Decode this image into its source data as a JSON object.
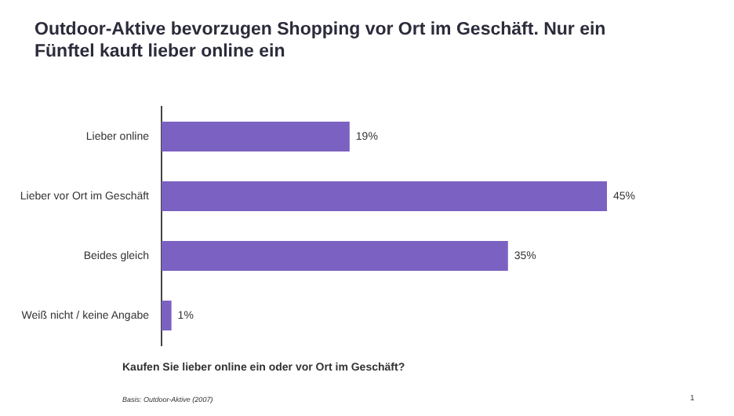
{
  "chart_data": {
    "type": "bar",
    "orientation": "horizontal",
    "title": "Outdoor-Aktive bevorzugen Shopping vor Ort im Geschäft. Nur ein Fünftel kauft lieber online ein",
    "categories": [
      "Lieber online",
      "Lieber vor Ort im Geschäft",
      "Beides gleich",
      "Weiß nicht / keine Angabe"
    ],
    "values": [
      19,
      45,
      35,
      1
    ],
    "value_labels": [
      "19%",
      "45%",
      "35%",
      "1%"
    ],
    "color": "#7b61c1",
    "legend": false,
    "tick_labels": "y",
    "annotations": [
      "Kaufen Sie lieber online ein oder vor Ort im Geschäft?",
      "Basis: Outdoor-Aktive (2007)",
      "1"
    ]
  }
}
